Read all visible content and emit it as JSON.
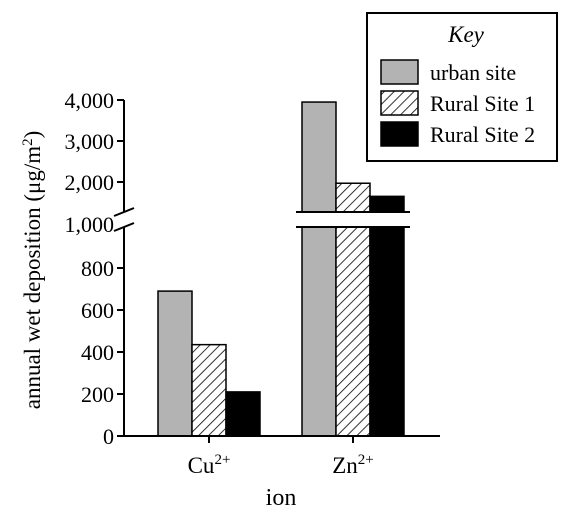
{
  "chart_data": {
    "type": "bar",
    "categories": [
      "Cu",
      "Zn"
    ],
    "category_superscripts": [
      "2+",
      "2+"
    ],
    "series": [
      {
        "name": "urban site",
        "values": [
          690,
          3950
        ],
        "fill": "#b3b3b3",
        "pattern": "solid"
      },
      {
        "name": "Rural Site 1",
        "values": [
          435,
          1970
        ],
        "fill": "#ffffff",
        "pattern": "diagonal-hatch"
      },
      {
        "name": "Rural Site 2",
        "values": [
          210,
          1650
        ],
        "fill": "#000000",
        "pattern": "solid"
      }
    ],
    "xlabel": "ion",
    "ylabel": "annual wet deposition (μg/m",
    "ylabel_superscript": "2",
    "ylabel_suffix": ")",
    "axis_break": true,
    "lower_segment": {
      "range": [
        0,
        1000
      ],
      "ticks": [
        0,
        200,
        400,
        600,
        800,
        1000
      ],
      "tick_labels": [
        "0",
        "200",
        "400",
        "600",
        "800",
        "1,000"
      ]
    },
    "upper_segment": {
      "range": [
        1000,
        4000
      ],
      "ticks": [
        1000,
        2000,
        3000,
        4000
      ],
      "tick_labels": [
        "1,000",
        "2,000",
        "3,000",
        "4,000"
      ]
    },
    "legend": {
      "title": "Key",
      "position": "top-right"
    },
    "grid": false
  }
}
